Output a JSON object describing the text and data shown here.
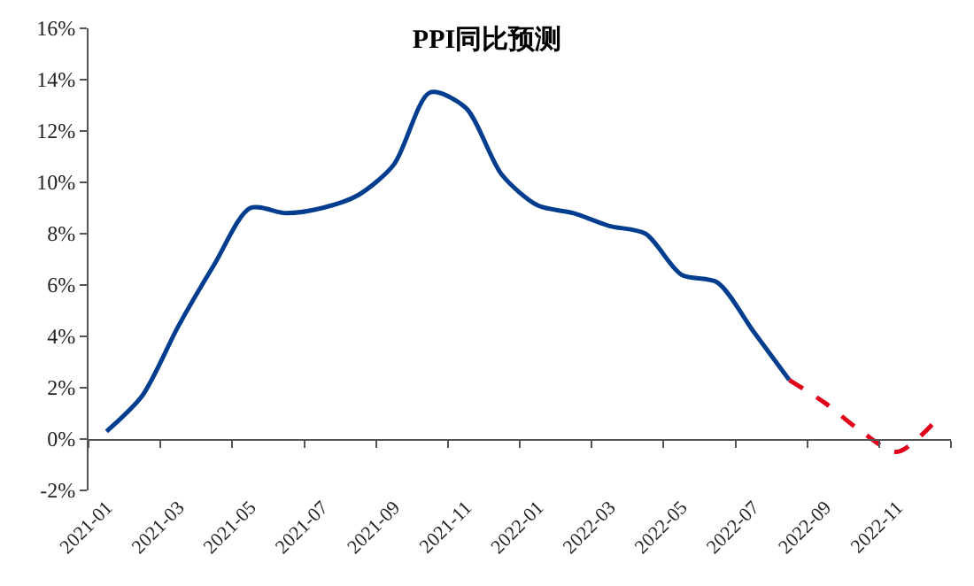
{
  "chart_data": {
    "type": "line",
    "title": "PPI同比预测",
    "categories": [
      "2021-01",
      null,
      "2021-03",
      null,
      "2021-05",
      null,
      "2021-07",
      null,
      "2021-09",
      null,
      "2021-11",
      null,
      "2022-01",
      null,
      "2022-03",
      null,
      "2022-05",
      null,
      "2022-07",
      null,
      "2022-09",
      null,
      "2022-11",
      null
    ],
    "series": [
      {
        "color": "#003d8f",
        "line_style": "solid",
        "values": [
          0.3,
          1.7,
          4.4,
          6.8,
          9.0,
          8.8,
          9.0,
          9.5,
          10.7,
          13.5,
          12.9,
          10.3,
          9.1,
          8.8,
          8.3,
          8.0,
          6.4,
          6.1,
          4.2,
          2.3,
          null,
          null,
          null,
          null
        ]
      },
      {
        "color": "#e0001a",
        "line_style": "dashed",
        "values": [
          null,
          null,
          null,
          null,
          null,
          null,
          null,
          null,
          null,
          null,
          null,
          null,
          null,
          null,
          null,
          null,
          null,
          null,
          null,
          2.3,
          1.4,
          0.3,
          -0.5,
          0.6
        ]
      }
    ],
    "ylim": [
      -2,
      16
    ],
    "yticks": [
      {
        "value": -2,
        "label": "-2%"
      },
      {
        "value": 0,
        "label": "0%"
      },
      {
        "value": 2,
        "label": "2%"
      },
      {
        "value": 4,
        "label": "4%"
      },
      {
        "value": 6,
        "label": "6%"
      },
      {
        "value": 8,
        "label": "8%"
      },
      {
        "value": 10,
        "label": "10%"
      },
      {
        "value": 12,
        "label": "12%"
      },
      {
        "value": 14,
        "label": "14%"
      },
      {
        "value": 16,
        "label": "16%"
      }
    ],
    "marker": "none"
  }
}
